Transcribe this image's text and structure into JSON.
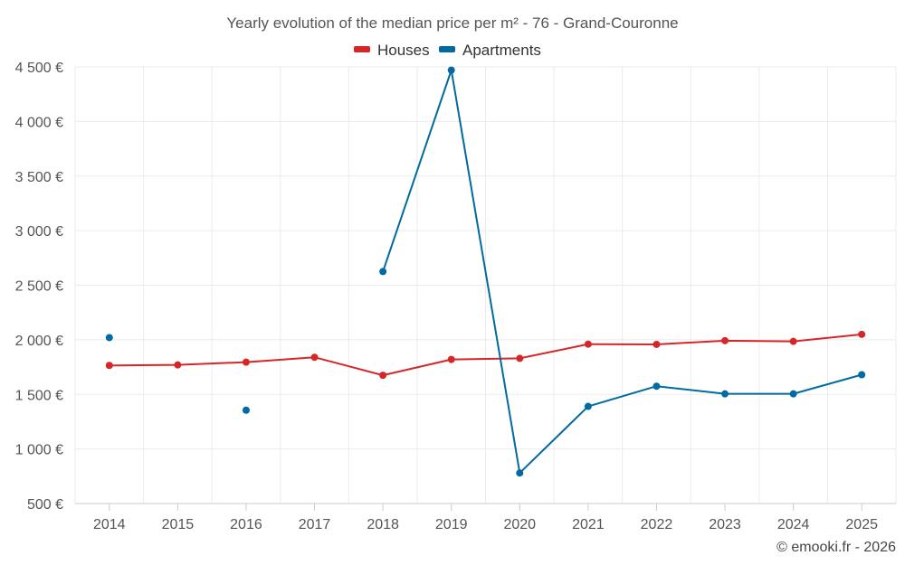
{
  "chart_data": {
    "type": "line",
    "title": "Yearly evolution of the median price per m² - 76 - Grand-Couronne",
    "categories": [
      "2014",
      "2015",
      "2016",
      "2017",
      "2018",
      "2019",
      "2020",
      "2021",
      "2022",
      "2023",
      "2024",
      "2025"
    ],
    "series": [
      {
        "name": "Houses",
        "color": "#d62728",
        "values": [
          1765,
          1770,
          1795,
          1840,
          1675,
          1820,
          1830,
          1960,
          1958,
          1992,
          1985,
          2050
        ]
      },
      {
        "name": "Apartments",
        "color": "#006aa1",
        "values": [
          2020,
          null,
          1355,
          null,
          2625,
          4470,
          780,
          1390,
          1575,
          1505,
          1505,
          1680
        ]
      }
    ],
    "ylim": [
      500,
      4500
    ],
    "yticks": [
      500,
      1000,
      1500,
      2000,
      2500,
      3000,
      3500,
      4000,
      4500
    ],
    "ytick_labels": [
      "500 €",
      "1 000 €",
      "1 500 €",
      "2 000 €",
      "2 500 €",
      "3 000 €",
      "3 500 €",
      "4 000 €",
      "4 500 €"
    ],
    "xlabel": "",
    "ylabel": "",
    "grid": true,
    "legend_position": "top-center"
  },
  "credit": "© emooki.fr - 2026"
}
